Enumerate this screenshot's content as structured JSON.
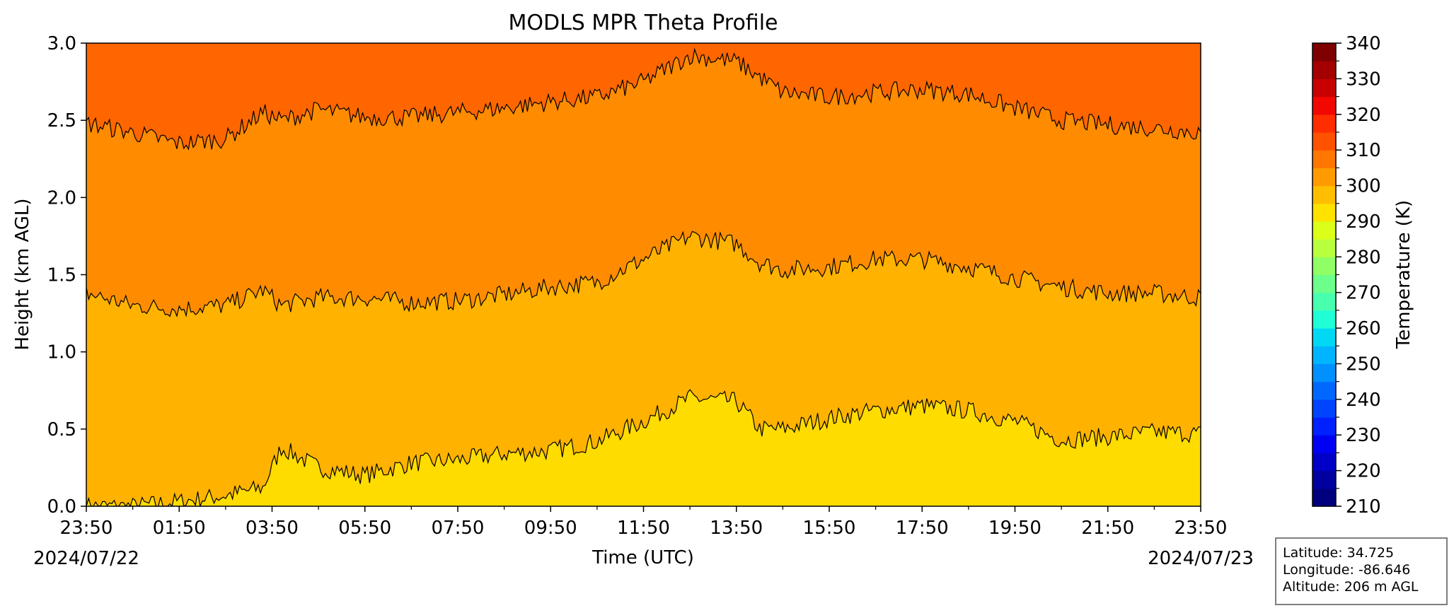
{
  "chart_data": {
    "type": "heatmap",
    "title": "MODLS MPR Theta Profile",
    "xlabel": "Time (UTC)",
    "ylabel": "Height (km AGL)",
    "x_tick_labels": [
      "23:50",
      "01:50",
      "03:50",
      "05:50",
      "07:50",
      "09:50",
      "11:50",
      "13:50",
      "15:50",
      "17:50",
      "19:50",
      "21:50",
      "23:50"
    ],
    "x_tick_hours": [
      0,
      2,
      4,
      6,
      8,
      10,
      12,
      14,
      16,
      18,
      20,
      22,
      24
    ],
    "xlim_hours": [
      0,
      24
    ],
    "start_date_label": "2024/07/22",
    "end_date_label": "2024/07/23",
    "y_ticks": [
      0.0,
      0.5,
      1.0,
      1.5,
      2.0,
      2.5,
      3.0
    ],
    "y_tick_labels": [
      "0.0",
      "0.5",
      "1.0",
      "1.5",
      "2.0",
      "2.5",
      "3.0"
    ],
    "ylim": [
      0,
      3
    ],
    "colorbar": {
      "label": "Temperature (K)",
      "range": [
        210,
        340
      ],
      "ticks": [
        210,
        220,
        230,
        240,
        250,
        260,
        270,
        280,
        290,
        300,
        310,
        320,
        330,
        340
      ],
      "colors": [
        "#00007f",
        "#00009f",
        "#0000c8",
        "#0000f2",
        "#0020ff",
        "#0044ff",
        "#0068ff",
        "#0090ff",
        "#00b4ff",
        "#00d8f4",
        "#1ffed7",
        "#48ffaf",
        "#6cff8b",
        "#90ff66",
        "#b8ff3e",
        "#dcff1a",
        "#ffe200",
        "#ffbf00",
        "#ff9b00",
        "#ff7600",
        "#ff5200",
        "#ff2d00",
        "#f20800",
        "#c80000",
        "#a40000",
        "#7f0000"
      ]
    },
    "bands": [
      {
        "range_K": "300-305",
        "color": "#ffdc00"
      },
      {
        "range_K": "305-310",
        "color": "#ffb300"
      },
      {
        "range_K": "310-315",
        "color": "#ff8c00"
      },
      {
        "range_K": "315-320",
        "color": "#ff6600"
      }
    ],
    "contours": [
      {
        "level_K": 305,
        "height_km": {
          "hours": [
            0,
            1,
            2,
            3,
            3.8,
            4.2,
            5,
            6,
            7,
            8,
            9,
            10,
            11,
            12,
            13,
            14,
            14.5,
            15,
            16,
            17,
            18,
            19,
            20,
            21,
            22,
            23,
            24
          ],
          "values": [
            0.0,
            0.0,
            0.03,
            0.07,
            0.12,
            0.38,
            0.25,
            0.2,
            0.28,
            0.3,
            0.34,
            0.36,
            0.42,
            0.55,
            0.7,
            0.68,
            0.5,
            0.5,
            0.57,
            0.62,
            0.65,
            0.62,
            0.55,
            0.43,
            0.45,
            0.48,
            0.47
          ]
        }
      },
      {
        "level_K": 310,
        "height_km": {
          "hours": [
            0,
            1,
            2,
            3,
            3.8,
            4.2,
            5,
            6,
            7,
            8,
            9,
            10,
            11,
            12,
            13,
            14,
            14.5,
            15,
            16,
            17,
            18,
            19,
            20,
            21,
            22,
            23,
            24
          ],
          "values": [
            1.38,
            1.3,
            1.28,
            1.3,
            1.4,
            1.3,
            1.35,
            1.35,
            1.32,
            1.33,
            1.37,
            1.42,
            1.45,
            1.6,
            1.75,
            1.7,
            1.58,
            1.53,
            1.55,
            1.6,
            1.6,
            1.55,
            1.48,
            1.42,
            1.38,
            1.38,
            1.35
          ]
        }
      },
      {
        "level_K": 315,
        "height_km": {
          "hours": [
            0,
            1,
            2,
            3,
            3.8,
            4.2,
            5,
            6,
            7,
            8,
            9,
            10,
            11,
            12,
            13,
            14,
            14.5,
            15,
            16,
            17,
            18,
            19,
            20,
            21,
            22,
            23,
            24
          ],
          "values": [
            2.48,
            2.42,
            2.35,
            2.38,
            2.55,
            2.5,
            2.57,
            2.52,
            2.52,
            2.55,
            2.58,
            2.62,
            2.65,
            2.75,
            2.92,
            2.88,
            2.78,
            2.68,
            2.65,
            2.68,
            2.7,
            2.67,
            2.58,
            2.5,
            2.47,
            2.45,
            2.42
          ]
        }
      }
    ]
  },
  "info_box": {
    "latitude": "Latitude: 34.725",
    "longitude": "Longitude: -86.646",
    "altitude": "Altitude: 206 m AGL"
  }
}
